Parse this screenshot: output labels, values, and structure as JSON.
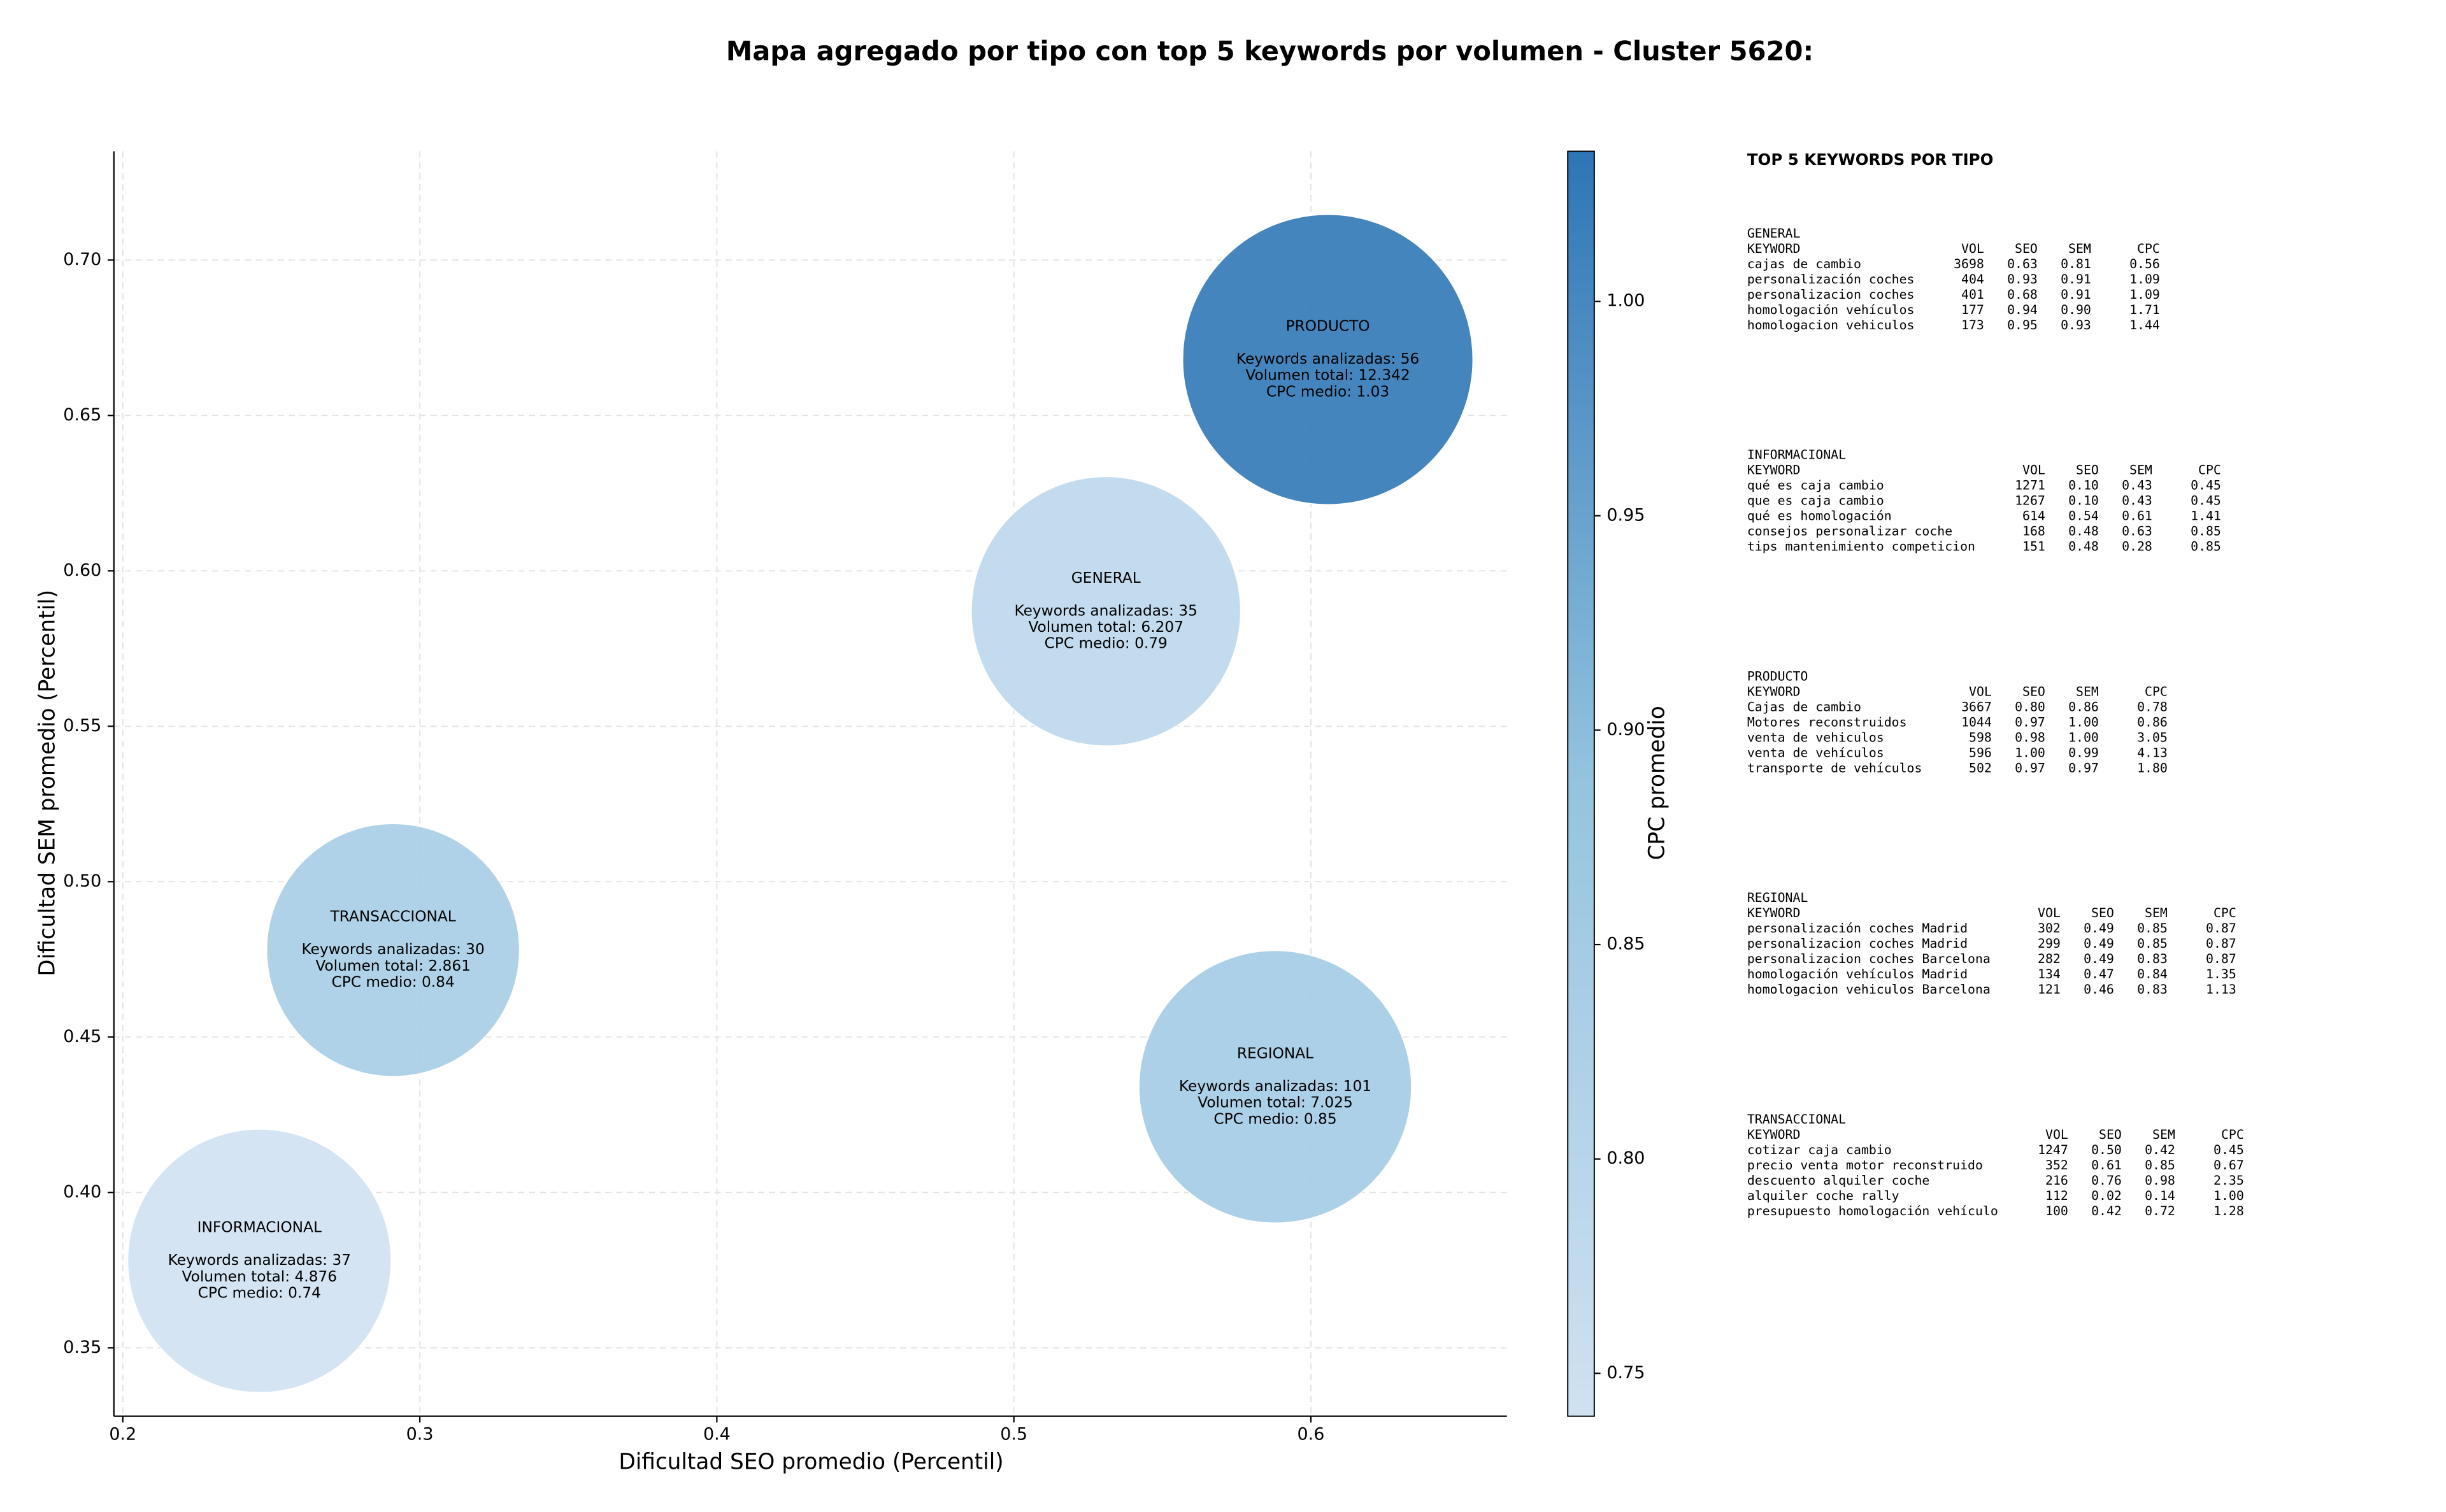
{
  "chart_data": {
    "type": "scatter",
    "title": "Mapa agregado por tipo con top 5 keywords por volumen - Cluster 5620:",
    "x_label": "Dificultad SEO promedio (Percentil)",
    "y_label": "Dificultad SEM promedio (Percentil)",
    "colorbar_label": "CPC promedio",
    "xlim": [
      0.197,
      0.666
    ],
    "ylim": [
      0.328,
      0.735
    ],
    "clim": [
      0.74,
      1.035
    ],
    "xticks": [
      0.2,
      0.3,
      0.4,
      0.5,
      0.6
    ],
    "yticks": [
      0.35,
      {
        "value": 0.4,
        "label": "0.40"
      },
      0.45,
      {
        "value": 0.5,
        "label": "0.50"
      },
      0.55,
      {
        "value": 0.6,
        "label": "0.60"
      },
      0.65,
      {
        "value": 0.7,
        "label": "0.70"
      }
    ],
    "cticks": [
      0.75,
      {
        "value": 0.8,
        "label": "0.80"
      },
      0.85,
      {
        "value": 0.9,
        "label": "0.90"
      },
      0.95,
      {
        "value": 1.0,
        "label": "1.00"
      }
    ],
    "grid": true,
    "colormap": [
      "#d0e1f2",
      "#94c4df",
      "#2e75b6"
    ],
    "series": [
      {
        "name": "PRODUCTO",
        "x": 0.6057,
        "y": 0.668,
        "volume": 12342,
        "cpc": 1.03,
        "labels": [
          "Keywords analizadas: 56",
          "Volumen total: 12.342",
          "CPC medio: 1.03"
        ]
      },
      {
        "name": "GENERAL",
        "x": 0.531,
        "y": 0.587,
        "volume": 6207,
        "cpc": 0.79,
        "labels": [
          "Keywords analizadas: 35",
          "Volumen total: 6.207",
          "CPC medio: 0.79"
        ]
      },
      {
        "name": "TRANSACCIONAL",
        "x": 0.291,
        "y": 0.478,
        "volume": 2861,
        "cpc": 0.84,
        "labels": [
          "Keywords analizadas: 30",
          "Volumen total: 2.861",
          "CPC medio: 0.84"
        ]
      },
      {
        "name": "REGIONAL",
        "x": 0.588,
        "y": 0.434,
        "volume": 7025,
        "cpc": 0.85,
        "labels": [
          "Keywords analizadas: 101",
          "Volumen total: 7.025",
          "CPC medio: 0.85"
        ]
      },
      {
        "name": "INFORMACIONAL",
        "x": 0.246,
        "y": 0.378,
        "volume": 4876,
        "cpc": 0.74,
        "labels": [
          "Keywords analizadas: 37",
          "Volumen total: 4.876",
          "CPC medio: 0.74"
        ]
      }
    ]
  },
  "keyword_panel": {
    "title": "TOP 5 KEYWORDS POR TIPO",
    "groups": [
      {
        "name": "GENERAL",
        "columns": [
          "KEYWORD",
          "VOL",
          "SEO",
          "SEM",
          "CPC"
        ],
        "rows": [
          [
            "cajas de cambio",
            "3698",
            "0.63",
            "0.81",
            "0.56"
          ],
          [
            "personalización coches",
            "404",
            "0.93",
            "0.91",
            "1.09"
          ],
          [
            "personalizacion coches",
            "401",
            "0.68",
            "0.91",
            "1.09"
          ],
          [
            "homologación vehículos",
            "177",
            "0.94",
            "0.90",
            "1.71"
          ],
          [
            "homologacion vehiculos",
            "173",
            "0.95",
            "0.93",
            "1.44"
          ]
        ]
      },
      {
        "name": "INFORMACIONAL",
        "columns": [
          "KEYWORD",
          "VOL",
          "SEO",
          "SEM",
          "CPC"
        ],
        "rows": [
          [
            "qué es caja cambio",
            "1271",
            "0.10",
            "0.43",
            "0.45"
          ],
          [
            "que es caja cambio",
            "1267",
            "0.10",
            "0.43",
            "0.45"
          ],
          [
            "qué es homologación",
            "614",
            "0.54",
            "0.61",
            "1.41"
          ],
          [
            "consejos personalizar coche",
            "168",
            "0.48",
            "0.63",
            "0.85"
          ],
          [
            "tips mantenimiento competicion",
            "151",
            "0.48",
            "0.28",
            "0.85"
          ]
        ]
      },
      {
        "name": "PRODUCTO",
        "columns": [
          "KEYWORD",
          "VOL",
          "SEO",
          "SEM",
          "CPC"
        ],
        "rows": [
          [
            "Cajas de cambio",
            "3667",
            "0.80",
            "0.86",
            "0.78"
          ],
          [
            "Motores reconstruidos",
            "1044",
            "0.97",
            "1.00",
            "0.86"
          ],
          [
            "venta de vehiculos",
            "598",
            "0.98",
            "1.00",
            "3.05"
          ],
          [
            "venta de vehículos",
            "596",
            "1.00",
            "0.99",
            "4.13"
          ],
          [
            "transporte de vehículos",
            "502",
            "0.97",
            "0.97",
            "1.80"
          ]
        ]
      },
      {
        "name": "REGIONAL",
        "columns": [
          "KEYWORD",
          "VOL",
          "SEO",
          "SEM",
          "CPC"
        ],
        "rows": [
          [
            "personalización coches Madrid",
            "302",
            "0.49",
            "0.85",
            "0.87"
          ],
          [
            "personalizacion coches Madrid",
            "299",
            "0.49",
            "0.85",
            "0.87"
          ],
          [
            "personalizacion coches Barcelona",
            "282",
            "0.49",
            "0.83",
            "0.87"
          ],
          [
            "homologación vehículos Madrid",
            "134",
            "0.47",
            "0.84",
            "1.35"
          ],
          [
            "homologacion vehiculos Barcelona",
            "121",
            "0.46",
            "0.83",
            "1.13"
          ]
        ]
      },
      {
        "name": "TRANSACCIONAL",
        "columns": [
          "KEYWORD",
          "VOL",
          "SEO",
          "SEM",
          "CPC"
        ],
        "rows": [
          [
            "cotizar caja cambio",
            "1247",
            "0.50",
            "0.42",
            "0.45"
          ],
          [
            "precio venta motor reconstruido",
            "352",
            "0.61",
            "0.85",
            "0.67"
          ],
          [
            "descuento alquiler coche",
            "216",
            "0.76",
            "0.98",
            "2.35"
          ],
          [
            "alquiler coche rally",
            "112",
            "0.02",
            "0.14",
            "1.00"
          ],
          [
            "presupuesto homologación vehículo",
            "100",
            "0.42",
            "0.72",
            "1.28"
          ]
        ]
      }
    ]
  }
}
